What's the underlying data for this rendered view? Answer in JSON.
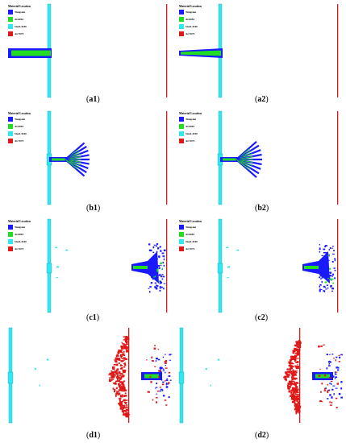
{
  "legend": {
    "title": "Material Location",
    "items": [
      {
        "label": "Tungsten",
        "color": "#1a1aff"
      },
      {
        "label": "Al-6061",
        "color": "#22dd22"
      },
      {
        "label": "Steel-4340",
        "color": "#33e6f0"
      },
      {
        "label": "Al-7075",
        "color": "#e01818"
      }
    ]
  },
  "panels": [
    {
      "id": "a1",
      "label_prefix": "(a",
      "label_num": "1",
      "label_suffix": ")"
    },
    {
      "id": "a2",
      "label_prefix": "(a",
      "label_num": "2",
      "label_suffix": ")"
    },
    {
      "id": "b1",
      "label_prefix": "(b",
      "label_num": "1",
      "label_suffix": ")"
    },
    {
      "id": "b2",
      "label_prefix": "(b",
      "label_num": "2",
      "label_suffix": ")"
    },
    {
      "id": "c1",
      "label_prefix": "(c",
      "label_num": "1",
      "label_suffix": ")"
    },
    {
      "id": "c2",
      "label_prefix": "(c",
      "label_num": "2",
      "label_suffix": ")"
    },
    {
      "id": "d1",
      "label_prefix": "(d",
      "label_num": "1",
      "label_suffix": ")"
    },
    {
      "id": "d2",
      "label_prefix": "(d",
      "label_num": "2",
      "label_suffix": ")"
    }
  ],
  "colors": {
    "tungsten": "#1a1aff",
    "al6061": "#22dd22",
    "steel": "#33e6f0",
    "al7075": "#e01818"
  }
}
